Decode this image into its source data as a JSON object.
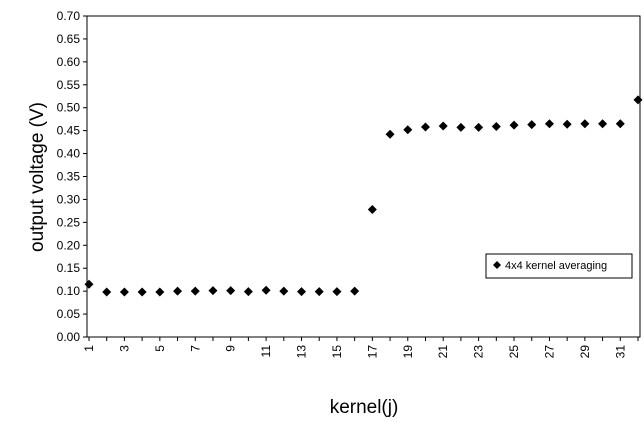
{
  "chart_data": {
    "type": "scatter",
    "title": "",
    "xlabel": "kernel(j)",
    "ylabel": "output voltage (V)",
    "xlim": [
      1,
      32
    ],
    "ylim": [
      0.0,
      0.7
    ],
    "x_ticks": [
      "1",
      "3",
      "5",
      "7",
      "9",
      "11",
      "13",
      "15",
      "17",
      "19",
      "21",
      "23",
      "25",
      "27",
      "29",
      "31"
    ],
    "y_ticks": [
      "0.00",
      "0.05",
      "0.10",
      "0.15",
      "0.20",
      "0.25",
      "0.30",
      "0.35",
      "0.40",
      "0.45",
      "0.50",
      "0.55",
      "0.60",
      "0.65",
      "0.70"
    ],
    "grid": false,
    "legend_position": "right",
    "marker": "diamond",
    "color": "#000000",
    "series": [
      {
        "name": "4x4 kernel averaging",
        "x": [
          1,
          2,
          3,
          4,
          5,
          6,
          7,
          8,
          9,
          10,
          11,
          12,
          13,
          14,
          15,
          16,
          17,
          18,
          19,
          20,
          21,
          22,
          23,
          24,
          25,
          26,
          27,
          28,
          29,
          30,
          31,
          32
        ],
        "values": [
          0.115,
          0.098,
          0.098,
          0.098,
          0.098,
          0.1,
          0.1,
          0.101,
          0.101,
          0.099,
          0.102,
          0.1,
          0.099,
          0.099,
          0.099,
          0.1,
          0.278,
          0.442,
          0.452,
          0.458,
          0.46,
          0.457,
          0.457,
          0.459,
          0.462,
          0.463,
          0.465,
          0.464,
          0.465,
          0.465,
          0.465,
          0.517
        ]
      }
    ]
  }
}
